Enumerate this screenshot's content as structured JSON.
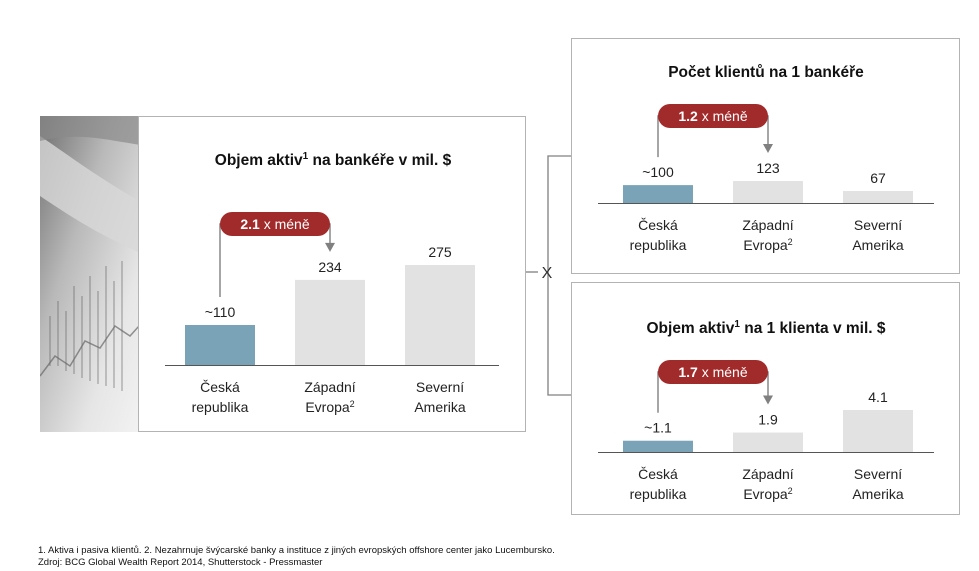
{
  "connector": {
    "operator": "X"
  },
  "footnotes": {
    "line1": "1. Aktiva i pasiva klientů.  2. Nezahrnuje švýcarské banky a instituce z jiných evropských offshore center jako Lucembursko.",
    "line2": "Zdroj: BCG Global Wealth Report 2014, Shutterstock - Pressmaster"
  },
  "colors": {
    "highlight": "#7aa3b8",
    "others": "#e2e2e2",
    "badge": "#a12a2a",
    "arrow": "#808080"
  },
  "chart_data": [
    {
      "type": "bar",
      "title": "Objem aktiv",
      "title_sup": "1",
      "title_rest": " na bankéře v mil. $",
      "categories": [
        "Česká republika",
        "Západní Evropa²",
        "Severní Amerika"
      ],
      "category_lines": [
        [
          "Česká",
          "republika"
        ],
        [
          "Západní",
          "Evropa²"
        ],
        [
          "Severní",
          "Amerika"
        ]
      ],
      "values": [
        110,
        234,
        275
      ],
      "value_labels": [
        "~110",
        "234",
        "275"
      ],
      "ylim": [
        0,
        275
      ],
      "annotation": {
        "bold": "2.1",
        "text": " x méně",
        "from": 0,
        "to": 1
      }
    },
    {
      "type": "bar",
      "title": "Počet klientů na 1 bankéře",
      "title_sup": "",
      "title_rest": "",
      "categories": [
        "Česká republika",
        "Západní Evropa²",
        "Severní Amerika"
      ],
      "category_lines": [
        [
          "Česká",
          "republika"
        ],
        [
          "Západní",
          "Evropa²"
        ],
        [
          "Severní",
          "Amerika"
        ]
      ],
      "values": [
        100,
        123,
        67
      ],
      "value_labels": [
        "~100",
        "123",
        "67"
      ],
      "ylim": [
        0,
        123
      ],
      "annotation": {
        "bold": "1.2",
        "text": " x méně",
        "from": 0,
        "to": 1
      }
    },
    {
      "type": "bar",
      "title": "Objem aktiv",
      "title_sup": "1",
      "title_rest": " na 1 klienta v mil. $",
      "categories": [
        "Česká republika",
        "Západní Evropa²",
        "Severní Amerika"
      ],
      "category_lines": [
        [
          "Česká",
          "republika"
        ],
        [
          "Západní",
          "Evropa²"
        ],
        [
          "Severní",
          "Amerika"
        ]
      ],
      "values": [
        1.1,
        1.9,
        4.1
      ],
      "value_labels": [
        "~1.1",
        "1.9",
        "4.1"
      ],
      "ylim": [
        0,
        4.1
      ],
      "annotation": {
        "bold": "1.7",
        "text": " x méně",
        "from": 0,
        "to": 1
      }
    }
  ]
}
